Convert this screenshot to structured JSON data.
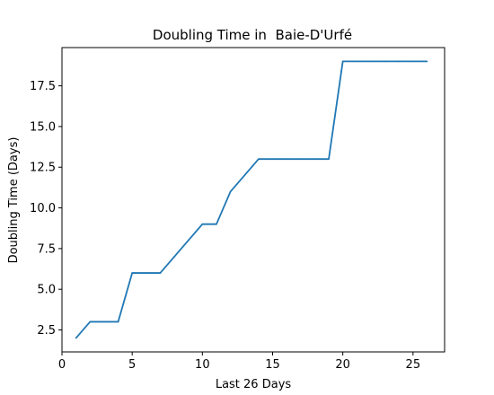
{
  "chart_data": {
    "type": "line",
    "title": "Doubling Time in  Baie-D'Urfé",
    "xlabel": "Last 26 Days",
    "ylabel": "Doubling Time (Days)",
    "xlim": [
      0,
      27.25
    ],
    "ylim": [
      1.15,
      19.85
    ],
    "x_ticks": [
      0,
      5,
      10,
      15,
      20,
      25
    ],
    "y_ticks": [
      2.5,
      5.0,
      7.5,
      10.0,
      12.5,
      15.0,
      17.5
    ],
    "x_tick_labels": [
      "0",
      "5",
      "10",
      "15",
      "20",
      "25"
    ],
    "y_tick_labels": [
      "2.5",
      "5.0",
      "7.5",
      "10.0",
      "12.5",
      "15.0",
      "17.5"
    ],
    "line_color": "#1f77b4",
    "grid": false,
    "series": [
      {
        "x": [
          1,
          2,
          3,
          4,
          5,
          6,
          7,
          8,
          9,
          10,
          11,
          12,
          13,
          14,
          15,
          16,
          17,
          18,
          19,
          20,
          21,
          22,
          23,
          24,
          25,
          26
        ],
        "values": [
          2,
          3,
          3,
          3,
          6,
          6,
          6,
          7,
          8,
          9,
          9,
          11,
          12,
          13,
          13,
          13,
          13,
          13,
          13,
          19,
          19,
          19,
          19,
          19,
          19,
          19
        ]
      }
    ]
  }
}
